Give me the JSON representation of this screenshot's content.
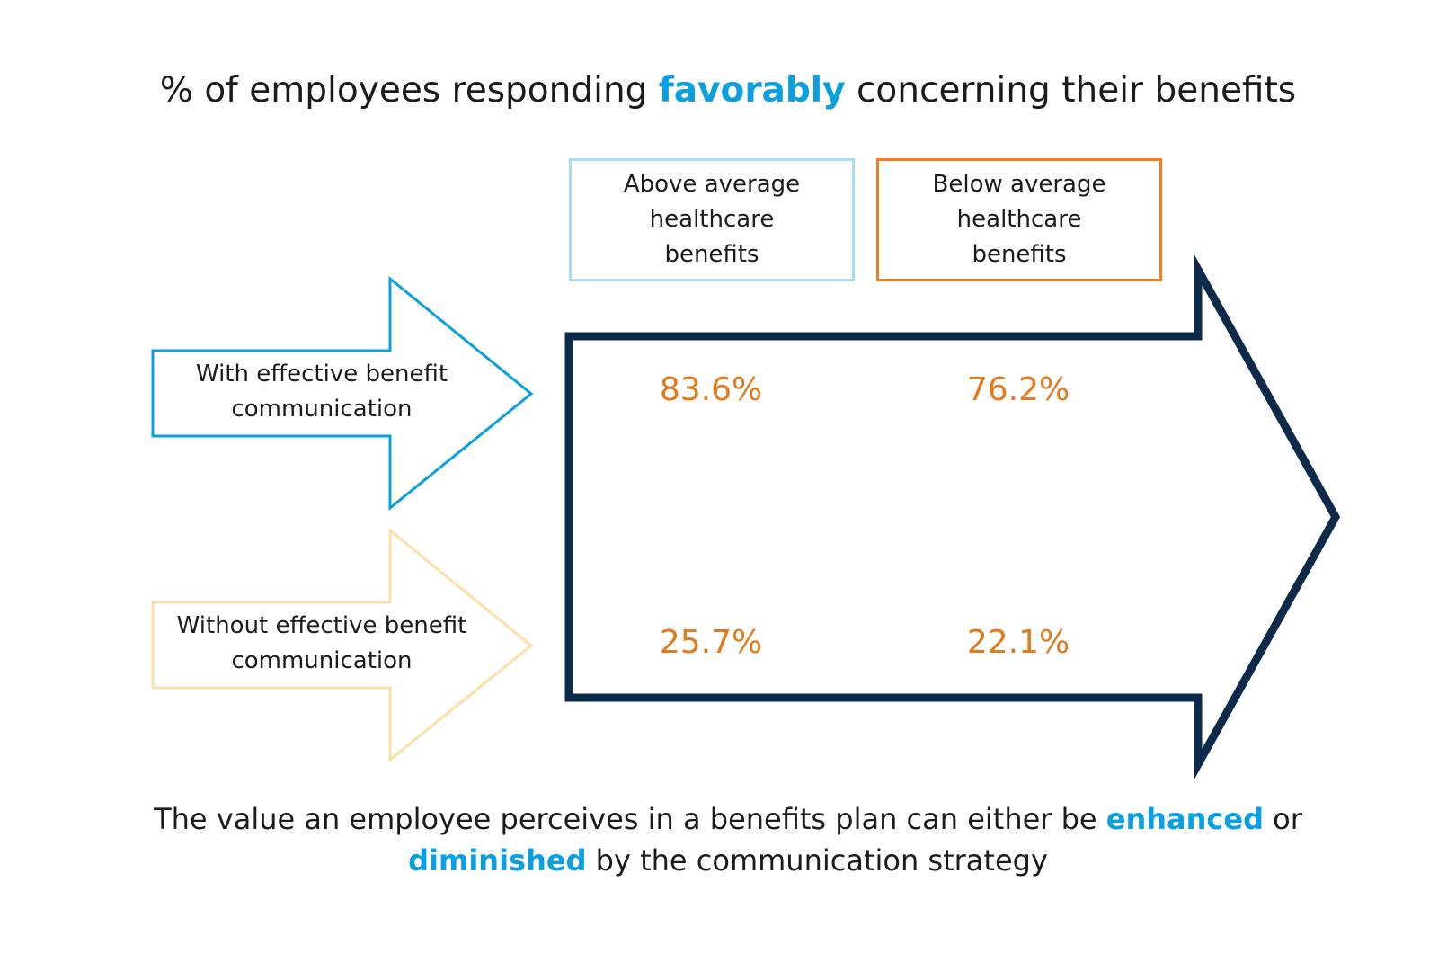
{
  "title": {
    "before": "% of employees responding ",
    "highlight": "favorably",
    "after": " concerning their benefits"
  },
  "columns": [
    {
      "label": "Above average healthcare benefits",
      "color": "#a8dcf7"
    },
    {
      "label": "Below average healthcare benefits",
      "color": "#f07d22"
    }
  ],
  "rows": [
    {
      "label": "With effective benefit communication",
      "color": "#0aa0dc"
    },
    {
      "label": "Without effective benefit communication",
      "color": "#fde0a8"
    }
  ],
  "values": {
    "with_above": "83.6%",
    "with_below": "76.2%",
    "without_above": "25.7%",
    "without_below": "22.1%"
  },
  "caption": {
    "part1": "The value an employee perceives in a benefits plan can either be ",
    "highlight1": "enhanced",
    "part2": " or ",
    "highlight2": "diminished",
    "part3": " by the communication strategy"
  },
  "colors": {
    "accent_blue": "#0a9fe0",
    "value_orange": "#e07b1e",
    "big_arrow": "#0d2a4a"
  }
}
